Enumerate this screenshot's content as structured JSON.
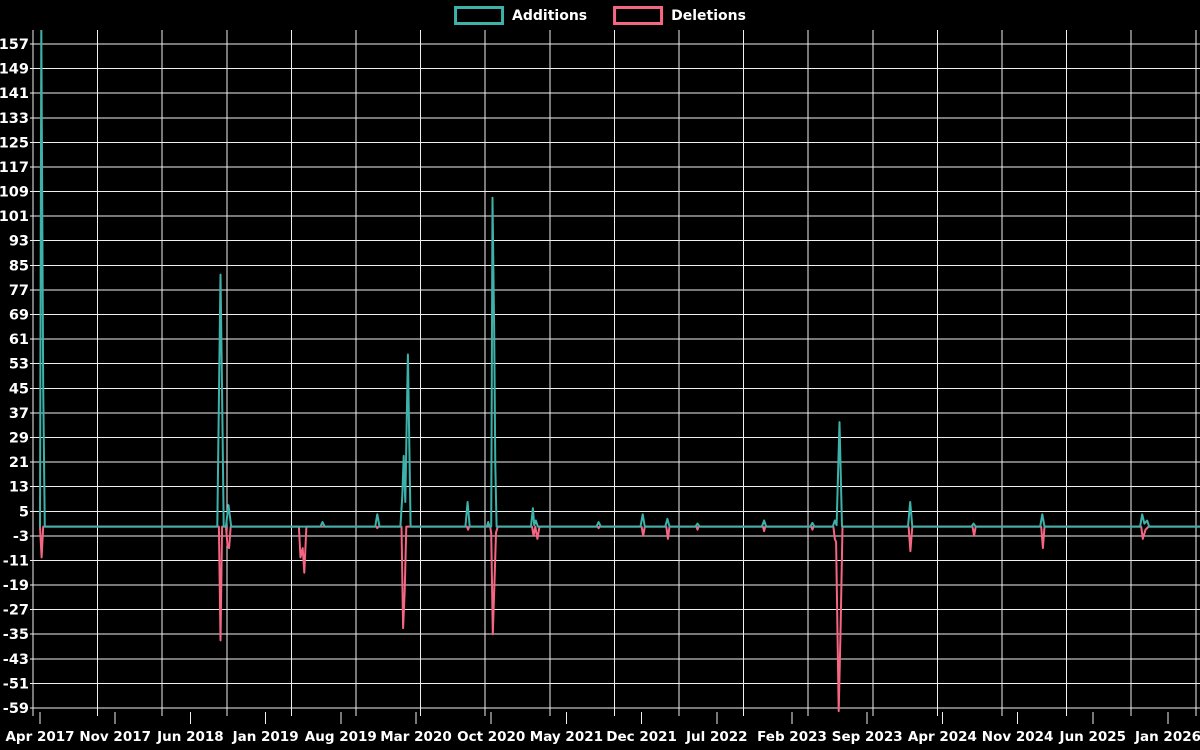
{
  "chart_data": {
    "type": "line",
    "title": "",
    "xlabel": "",
    "ylabel": "",
    "background_color": "#000000",
    "grid": "on",
    "grid_color": "#efefef",
    "text_color": "#ffffff",
    "legend_position": "top-center",
    "ylim": [
      -59,
      157
    ],
    "y_ticks": [
      157,
      149,
      141,
      133,
      125,
      117,
      109,
      101,
      93,
      85,
      77,
      69,
      61,
      53,
      45,
      37,
      29,
      21,
      13,
      5,
      -3,
      -11,
      -19,
      -27,
      -35,
      -43,
      -51,
      -59
    ],
    "x_ticks": [
      {
        "label": "Apr 2017",
        "month": 0
      },
      {
        "label": "Nov 2017",
        "month": 7
      },
      {
        "label": "Jun 2018",
        "month": 14
      },
      {
        "label": "Jan 2019",
        "month": 21
      },
      {
        "label": "Aug 2019",
        "month": 28
      },
      {
        "label": "Mar 2020",
        "month": 35
      },
      {
        "label": "Oct 2020",
        "month": 42
      },
      {
        "label": "May 2021",
        "month": 49
      },
      {
        "label": "Dec 2021",
        "month": 56
      },
      {
        "label": "Jul 2022",
        "month": 63
      },
      {
        "label": "Feb 2023",
        "month": 70
      },
      {
        "label": "Sep 2023",
        "month": 77
      },
      {
        "label": "Apr 2024",
        "month": 84
      },
      {
        "label": "Nov 2024",
        "month": 91
      },
      {
        "label": "Jun 2025",
        "month": 98
      },
      {
        "label": "Jan 2026",
        "month": 105
      }
    ],
    "x_unit": "months since Apr 2017",
    "series": [
      {
        "name": "Additions",
        "color": "#3db2aa",
        "points": [
          [
            0,
            0
          ],
          [
            0.12,
            162
          ],
          [
            0.3,
            45
          ],
          [
            0.45,
            0
          ],
          [
            16.5,
            0
          ],
          [
            16.8,
            82
          ],
          [
            16.95,
            43
          ],
          [
            17.1,
            0
          ],
          [
            17.3,
            0
          ],
          [
            17.55,
            7
          ],
          [
            17.8,
            0
          ],
          [
            26.1,
            0
          ],
          [
            26.3,
            1.5
          ],
          [
            26.5,
            0
          ],
          [
            31.2,
            0
          ],
          [
            31.4,
            4
          ],
          [
            31.6,
            0
          ],
          [
            33.55,
            0
          ],
          [
            33.72,
            10
          ],
          [
            33.85,
            23
          ],
          [
            34.0,
            8
          ],
          [
            34.25,
            56
          ],
          [
            34.5,
            0
          ],
          [
            39.6,
            0
          ],
          [
            39.8,
            8
          ],
          [
            40.0,
            0
          ],
          [
            41.6,
            0
          ],
          [
            41.72,
            1.5
          ],
          [
            41.85,
            0
          ],
          [
            42.0,
            0
          ],
          [
            42.12,
            107
          ],
          [
            42.28,
            63
          ],
          [
            42.38,
            20
          ],
          [
            42.5,
            0
          ],
          [
            45.7,
            0
          ],
          [
            45.88,
            6
          ],
          [
            46.0,
            0.5
          ],
          [
            46.15,
            2
          ],
          [
            46.35,
            0
          ],
          [
            51.8,
            0
          ],
          [
            52.0,
            1.5
          ],
          [
            52.2,
            0
          ],
          [
            55.9,
            0
          ],
          [
            56.1,
            4
          ],
          [
            56.3,
            0
          ],
          [
            58.2,
            0
          ],
          [
            58.4,
            2.5
          ],
          [
            58.6,
            0
          ],
          [
            61.0,
            0
          ],
          [
            61.2,
            1
          ],
          [
            61.4,
            0
          ],
          [
            67.2,
            0
          ],
          [
            67.4,
            2
          ],
          [
            67.6,
            0
          ],
          [
            71.7,
            0
          ],
          [
            71.9,
            1.2
          ],
          [
            72.1,
            0
          ],
          [
            73.8,
            0
          ],
          [
            73.98,
            2
          ],
          [
            74.15,
            0.5
          ],
          [
            74.42,
            34
          ],
          [
            74.65,
            0
          ],
          [
            80.8,
            0
          ],
          [
            81.0,
            8
          ],
          [
            81.2,
            0
          ],
          [
            86.7,
            0
          ],
          [
            86.9,
            1
          ],
          [
            87.1,
            0
          ],
          [
            93.1,
            0
          ],
          [
            93.3,
            4
          ],
          [
            93.5,
            0
          ],
          [
            102.4,
            0
          ],
          [
            102.6,
            4
          ],
          [
            102.8,
            1
          ],
          [
            103.05,
            2
          ],
          [
            103.25,
            0
          ],
          [
            108,
            0
          ]
        ]
      },
      {
        "name": "Deletions",
        "color": "#f46682",
        "points": [
          [
            0,
            0
          ],
          [
            0.15,
            -10
          ],
          [
            0.3,
            0
          ],
          [
            16.65,
            0
          ],
          [
            16.8,
            -37
          ],
          [
            16.95,
            0
          ],
          [
            17.3,
            0
          ],
          [
            17.45,
            -6
          ],
          [
            17.6,
            -7
          ],
          [
            17.75,
            0
          ],
          [
            24.1,
            0
          ],
          [
            24.25,
            -10
          ],
          [
            24.45,
            -7
          ],
          [
            24.6,
            -15
          ],
          [
            24.8,
            0
          ],
          [
            31.3,
            0
          ],
          [
            31.4,
            -0.5
          ],
          [
            31.5,
            0
          ],
          [
            33.65,
            0
          ],
          [
            33.8,
            -33
          ],
          [
            33.95,
            -21
          ],
          [
            34.1,
            0
          ],
          [
            39.75,
            0
          ],
          [
            39.85,
            -1
          ],
          [
            39.95,
            0
          ],
          [
            41.9,
            0
          ],
          [
            42.0,
            -2
          ],
          [
            42.15,
            -35
          ],
          [
            42.3,
            -19
          ],
          [
            42.45,
            -2
          ],
          [
            42.6,
            0
          ],
          [
            45.8,
            0
          ],
          [
            45.95,
            -3
          ],
          [
            46.1,
            0
          ],
          [
            46.3,
            -4
          ],
          [
            46.5,
            0
          ],
          [
            51.9,
            0
          ],
          [
            52.0,
            -0.5
          ],
          [
            52.1,
            0
          ],
          [
            56.0,
            0
          ],
          [
            56.15,
            -3
          ],
          [
            56.3,
            0
          ],
          [
            58.3,
            0
          ],
          [
            58.45,
            -4
          ],
          [
            58.6,
            0
          ],
          [
            61.1,
            0
          ],
          [
            61.2,
            -1
          ],
          [
            61.3,
            0
          ],
          [
            67.3,
            0
          ],
          [
            67.4,
            -1.5
          ],
          [
            67.5,
            0
          ],
          [
            71.8,
            0
          ],
          [
            71.9,
            -1
          ],
          [
            72.0,
            0
          ],
          [
            73.85,
            0
          ],
          [
            73.98,
            -4
          ],
          [
            74.1,
            -5
          ],
          [
            74.35,
            -60
          ],
          [
            74.52,
            -33
          ],
          [
            74.7,
            0
          ],
          [
            80.85,
            0
          ],
          [
            81.02,
            -8
          ],
          [
            81.2,
            0
          ],
          [
            86.8,
            0
          ],
          [
            86.95,
            -3
          ],
          [
            87.1,
            0
          ],
          [
            93.2,
            0
          ],
          [
            93.35,
            -7
          ],
          [
            93.5,
            0
          ],
          [
            102.5,
            0
          ],
          [
            102.65,
            -4
          ],
          [
            102.9,
            -1
          ],
          [
            103.2,
            0
          ],
          [
            108,
            0
          ]
        ]
      }
    ]
  }
}
